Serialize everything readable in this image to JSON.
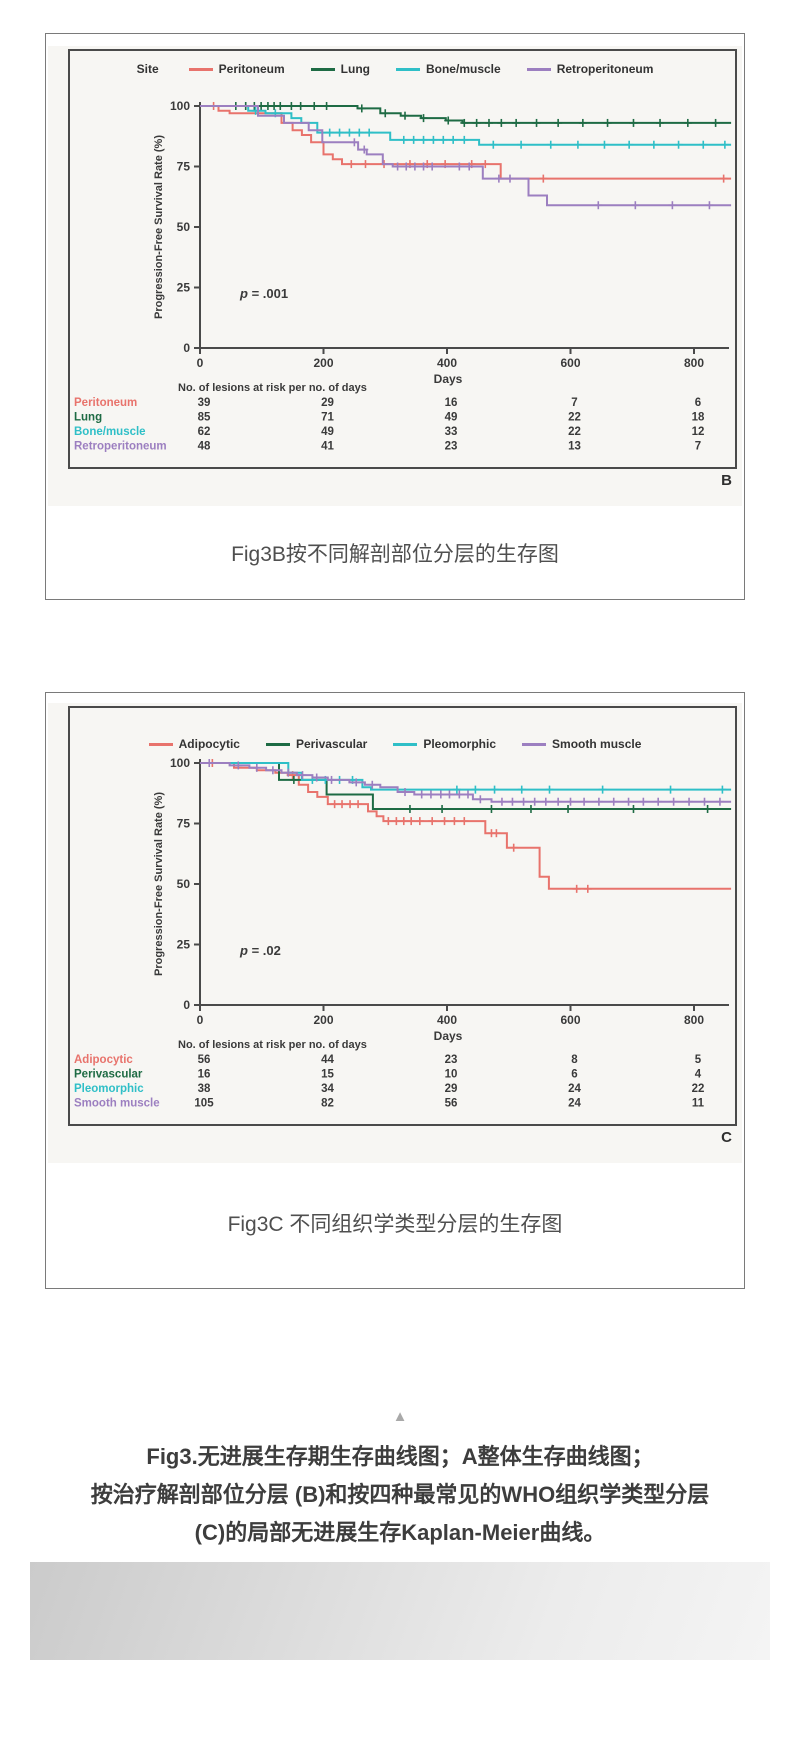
{
  "figures": [
    {
      "panel_label": "B",
      "caption": "Fig3B按不同解剖部位分层的生存图"
    },
    {
      "panel_label": "C",
      "caption": "Fig3C 不同组织学类型分层的生存图"
    }
  ],
  "footer": {
    "triangle_icon": "▲",
    "lines": [
      "Fig3.无进展生存期生存曲线图；A整体生存曲线图；",
      "按治疗解剖部位分层 (B)和按四种最常见的WHO组织学类型分层",
      "(C)的局部无进展生存Kaplan-Meier曲线。"
    ]
  },
  "chart_data": [
    {
      "type": "line",
      "subtype": "kaplan_meier_step",
      "legend_title": "Site",
      "xlabel": "Days",
      "ylabel": "Progression-Free Survival Rate (%)",
      "p_value": "p = .001",
      "xlim": [
        0,
        860
      ],
      "ylim": [
        0,
        100
      ],
      "xticks": [
        0,
        200,
        400,
        600,
        800
      ],
      "yticks": [
        0,
        25,
        50,
        75,
        100
      ],
      "series": [
        {
          "name": "Peritoneum",
          "color": "#e8736c",
          "points": [
            [
              0,
              100
            ],
            [
              30,
              98
            ],
            [
              48,
              97
            ],
            [
              132,
              93
            ],
            [
              150,
              90
            ],
            [
              165,
              88
            ],
            [
              180,
              85
            ],
            [
              200,
              80
            ],
            [
              215,
              78
            ],
            [
              230,
              76
            ],
            [
              487,
              70
            ],
            [
              860,
              70
            ]
          ],
          "censors": [
            22,
            245,
            268,
            298,
            340,
            368,
            397,
            440,
            462,
            556,
            848
          ]
        },
        {
          "name": "Lung",
          "color": "#1e6b44",
          "points": [
            [
              0,
              100
            ],
            [
              255,
              99
            ],
            [
              292,
              97
            ],
            [
              325,
              96
            ],
            [
              358,
              95
            ],
            [
              398,
              94
            ],
            [
              425,
              93
            ],
            [
              860,
              93
            ]
          ],
          "censors": [
            58,
            74,
            88,
            99,
            110,
            120,
            130,
            148,
            163,
            185,
            205,
            262,
            300,
            332,
            362,
            402,
            428,
            448,
            468,
            488,
            512,
            545,
            580,
            620,
            660,
            702,
            745,
            790,
            835
          ]
        },
        {
          "name": "Bone/muscle",
          "color": "#2fbfc7",
          "points": [
            [
              0,
              100
            ],
            [
              78,
              98
            ],
            [
              106,
              97
            ],
            [
              148,
              95
            ],
            [
              164,
              93
            ],
            [
              190,
              89
            ],
            [
              308,
              86
            ],
            [
              452,
              84
            ],
            [
              860,
              84
            ]
          ],
          "censors": [
            90,
            122,
            210,
            226,
            242,
            258,
            274,
            330,
            346,
            362,
            378,
            394,
            410,
            428,
            475,
            520,
            568,
            612,
            655,
            695,
            735,
            775,
            815,
            850
          ]
        },
        {
          "name": "Retroperitoneum",
          "color": "#9c7fc0",
          "points": [
            [
              0,
              100
            ],
            [
              94,
              96
            ],
            [
              136,
              93
            ],
            [
              176,
              90
            ],
            [
              198,
              85
            ],
            [
              256,
              82
            ],
            [
              270,
              80
            ],
            [
              296,
              76
            ],
            [
              312,
              75
            ],
            [
              458,
              70
            ],
            [
              532,
              63
            ],
            [
              562,
              59
            ],
            [
              860,
              59
            ]
          ],
          "censors": [
            250,
            266,
            320,
            334,
            348,
            362,
            376,
            420,
            436,
            484,
            502,
            645,
            705,
            765,
            825
          ]
        }
      ],
      "risk_table": {
        "header": "No. of lesions at risk per no. of days",
        "rows": [
          {
            "label": "Peritoneum",
            "values": [
              39,
              29,
              16,
              7,
              6
            ]
          },
          {
            "label": "Lung",
            "values": [
              85,
              71,
              49,
              22,
              18
            ]
          },
          {
            "label": "Bone/muscle",
            "values": [
              62,
              49,
              33,
              22,
              12
            ]
          },
          {
            "label": "Retroperitoneum",
            "values": [
              48,
              41,
              23,
              13,
              7
            ]
          }
        ]
      }
    },
    {
      "type": "line",
      "subtype": "kaplan_meier_step",
      "legend_title": "",
      "xlabel": "Days",
      "ylabel": "Progression-Free Survival Rate (%)",
      "p_value": "p = .02",
      "xlim": [
        0,
        860
      ],
      "ylim": [
        0,
        100
      ],
      "xticks": [
        0,
        200,
        400,
        600,
        800
      ],
      "yticks": [
        0,
        25,
        50,
        75,
        100
      ],
      "series": [
        {
          "name": "Adipocytic",
          "color": "#e8736c",
          "points": [
            [
              0,
              100
            ],
            [
              55,
              98
            ],
            [
              92,
              97
            ],
            [
              122,
              96
            ],
            [
              142,
              95
            ],
            [
              160,
              91
            ],
            [
              175,
              88
            ],
            [
              190,
              86
            ],
            [
              207,
              83
            ],
            [
              272,
              80
            ],
            [
              286,
              78
            ],
            [
              297,
              76
            ],
            [
              462,
              71
            ],
            [
              497,
              65
            ],
            [
              550,
              53
            ],
            [
              565,
              48
            ],
            [
              860,
              48
            ]
          ],
          "censors": [
            20,
            150,
            218,
            230,
            243,
            256,
            305,
            318,
            330,
            342,
            356,
            376,
            396,
            412,
            428,
            472,
            480,
            508,
            610,
            628
          ]
        },
        {
          "name": "Perivascular",
          "color": "#1e6b44",
          "points": [
            [
              0,
              100
            ],
            [
              128,
              93
            ],
            [
              205,
              87
            ],
            [
              280,
              81
            ],
            [
              860,
              81
            ]
          ],
          "censors": [
            152,
            340,
            392,
            472,
            536,
            596,
            702,
            822
          ]
        },
        {
          "name": "Pleomorphic",
          "color": "#2fbfc7",
          "points": [
            [
              0,
              100
            ],
            [
              143,
              96
            ],
            [
              165,
              93
            ],
            [
              263,
              90
            ],
            [
              277,
              89
            ],
            [
              860,
              89
            ]
          ],
          "censors": [
            182,
            203,
            226,
            247,
            416,
            446,
            477,
            521,
            566,
            652,
            762,
            846
          ]
        },
        {
          "name": "Smooth muscle",
          "color": "#9c7fc0",
          "points": [
            [
              0,
              100
            ],
            [
              48,
              99
            ],
            [
              80,
              98
            ],
            [
              107,
              97
            ],
            [
              132,
              96
            ],
            [
              157,
              95
            ],
            [
              182,
              94
            ],
            [
              207,
              93
            ],
            [
              242,
              92
            ],
            [
              267,
              91
            ],
            [
              292,
              90
            ],
            [
              320,
              88
            ],
            [
              347,
              87
            ],
            [
              442,
              85
            ],
            [
              472,
              84
            ],
            [
              860,
              84
            ]
          ],
          "censors": [
            15,
            62,
            92,
            118,
            143,
            166,
            189,
            213,
            253,
            279,
            332,
            359,
            374,
            390,
            404,
            420,
            434,
            454,
            489,
            506,
            524,
            542,
            560,
            580,
            600,
            622,
            646,
            670,
            694,
            718,
            742,
            767,
            792,
            817,
            842
          ]
        }
      ],
      "risk_table": {
        "header": "No. of lesions at risk per no. of days",
        "rows": [
          {
            "label": "Adipocytic",
            "values": [
              56,
              44,
              23,
              8,
              5
            ]
          },
          {
            "label": "Perivascular",
            "values": [
              16,
              15,
              10,
              6,
              4
            ]
          },
          {
            "label": "Pleomorphic",
            "values": [
              38,
              34,
              29,
              24,
              22
            ]
          },
          {
            "label": "Smooth muscle",
            "values": [
              105,
              82,
              56,
              24,
              11
            ]
          }
        ]
      }
    }
  ]
}
